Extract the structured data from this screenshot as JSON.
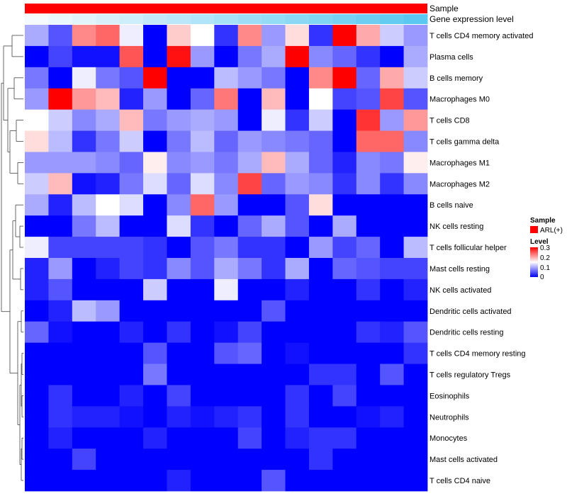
{
  "chart_data": {
    "type": "heatmap",
    "title": "",
    "annotation_tracks": {
      "sample": {
        "label": "Sample",
        "color": "#ff0000"
      },
      "expression": {
        "label": "Gene expression level",
        "low_color": "#f4fafe",
        "high_color": "#5ac8f0"
      }
    },
    "rows": [
      "T cells CD4 memory activated",
      "Plasma cells",
      "B cells memory",
      "Macrophages M0",
      "T cells CD8",
      "T cells gamma delta",
      "Macrophages M1",
      "Macrophages M2",
      "B cells naive",
      "NK cells resting",
      "T cells follicular helper",
      "Mast cells resting",
      "NK cells activated",
      "Dendritic cells activated",
      "Dendritic cells resting",
      "T cells CD4 memory resting",
      "T cells regulatory  Tregs",
      "Eosinophils",
      "Neutrophils",
      "Monocytes",
      "Mast cells activated",
      "T cells CD4 naive"
    ],
    "values": [
      [
        0.1,
        0.05,
        0.22,
        0.24,
        0.14,
        0.0,
        0.18,
        0.15,
        0.03,
        0.22,
        0.09,
        0.17,
        0.03,
        0.3,
        0.2,
        0.12,
        0.09
      ],
      [
        0.0,
        0.04,
        0.01,
        0.01,
        0.25,
        0.0,
        0.29,
        0.09,
        0.0,
        0.07,
        0.1,
        0.3,
        0.08,
        0.06,
        0.03,
        0.0,
        0.1
      ],
      [
        0.07,
        0.0,
        0.14,
        0.07,
        0.05,
        0.3,
        0.0,
        0.0,
        0.11,
        0.09,
        0.07,
        0.0,
        0.22,
        0.3,
        0.06,
        0.2,
        0.12
      ],
      [
        0.09,
        0.3,
        0.21,
        0.19,
        0.02,
        0.09,
        0.0,
        0.06,
        0.23,
        0.0,
        0.19,
        0.0,
        0.15,
        0.04,
        0.05,
        0.26,
        0.05
      ],
      [
        0.15,
        0.12,
        0.08,
        0.1,
        0.19,
        0.07,
        0.09,
        0.1,
        0.09,
        0.0,
        0.14,
        0.03,
        0.12,
        0.0,
        0.27,
        0.09,
        0.21
      ],
      [
        0.17,
        0.11,
        0.03,
        0.07,
        0.12,
        0.0,
        0.07,
        0.11,
        0.06,
        0.09,
        0.08,
        0.07,
        0.06,
        0.0,
        0.24,
        0.24,
        0.08
      ],
      [
        0.09,
        0.09,
        0.09,
        0.08,
        0.06,
        0.16,
        0.08,
        0.09,
        0.07,
        0.1,
        0.19,
        0.1,
        0.06,
        0.02,
        0.08,
        0.07,
        0.16
      ],
      [
        0.12,
        0.19,
        0.01,
        0.02,
        0.07,
        0.13,
        0.06,
        0.13,
        0.08,
        0.26,
        0.06,
        0.09,
        0.08,
        0.03,
        0.08,
        0.03,
        0.08
      ],
      [
        0.1,
        0.02,
        0.11,
        0.15,
        0.13,
        0.0,
        0.08,
        0.24,
        0.09,
        0.0,
        0.0,
        0.05,
        0.17,
        0.0,
        0.0,
        0.0,
        0.0
      ],
      [
        0.0,
        0.0,
        0.07,
        0.11,
        0.0,
        0.0,
        0.13,
        0.03,
        0.0,
        0.06,
        0.1,
        0.05,
        0.0,
        0.1,
        0.0,
        0.0,
        0.0
      ],
      [
        0.14,
        0.04,
        0.04,
        0.04,
        0.04,
        0.03,
        0.0,
        0.05,
        0.07,
        0.03,
        0.03,
        0.0,
        0.09,
        0.04,
        0.06,
        0.0,
        0.11
      ],
      [
        0.02,
        0.09,
        0.0,
        0.02,
        0.04,
        0.03,
        0.08,
        0.05,
        0.1,
        0.07,
        0.03,
        0.1,
        0.0,
        0.06,
        0.05,
        0.04,
        0.04
      ],
      [
        0.02,
        0.05,
        0.0,
        0.0,
        0.0,
        0.12,
        0.0,
        0.0,
        0.14,
        0.0,
        0.0,
        0.02,
        0.0,
        0.0,
        0.03,
        0.0,
        0.02
      ],
      [
        0.0,
        0.02,
        0.11,
        0.09,
        0.0,
        0.0,
        0.0,
        0.0,
        0.0,
        0.0,
        0.05,
        0.0,
        0.0,
        0.0,
        0.0,
        0.0,
        0.0
      ],
      [
        0.06,
        0.01,
        0.0,
        0.0,
        0.02,
        0.0,
        0.03,
        0.0,
        0.01,
        0.04,
        0.0,
        0.0,
        0.0,
        0.0,
        0.03,
        0.02,
        0.05
      ],
      [
        0.0,
        0.0,
        0.0,
        0.0,
        0.0,
        0.05,
        0.0,
        0.0,
        0.05,
        0.06,
        0.0,
        0.01,
        0.0,
        0.0,
        0.0,
        0.0,
        0.03
      ],
      [
        0.0,
        0.0,
        0.0,
        0.0,
        0.0,
        0.07,
        0.0,
        0.0,
        0.0,
        0.0,
        0.0,
        0.0,
        0.03,
        0.03,
        0.0,
        0.05,
        0.0
      ],
      [
        0.0,
        0.03,
        0.0,
        0.0,
        0.02,
        0.0,
        0.04,
        0.0,
        0.0,
        0.0,
        0.0,
        0.03,
        0.0,
        0.04,
        0.0,
        0.0,
        0.0
      ],
      [
        0.0,
        0.03,
        0.02,
        0.02,
        0.01,
        0.0,
        0.02,
        0.01,
        0.02,
        0.03,
        0.0,
        0.03,
        0.0,
        0.0,
        0.01,
        0.02,
        0.0
      ],
      [
        0.0,
        0.02,
        0.0,
        0.0,
        0.0,
        0.02,
        0.0,
        0.0,
        0.0,
        0.04,
        0.0,
        0.02,
        0.03,
        0.03,
        0.0,
        0.0,
        0.0
      ],
      [
        0.0,
        0.0,
        0.04,
        0.0,
        0.0,
        0.0,
        0.0,
        0.0,
        0.0,
        0.0,
        0.0,
        0.0,
        0.03,
        0.0,
        0.0,
        0.0,
        0.0
      ],
      [
        0.0,
        0.0,
        0.0,
        0.0,
        0.0,
        0.0,
        0.02,
        0.0,
        0.0,
        0.0,
        0.05,
        0.0,
        0.0,
        0.0,
        0.0,
        0.0,
        0.0
      ]
    ],
    "color_scale": {
      "min": 0,
      "max": 0.3,
      "low": "#0000ff",
      "mid": "#ffffff",
      "high": "#ff0000",
      "mid_value": 0.15
    },
    "legend": {
      "sample_title": "Sample",
      "sample_item": "ARL(+)",
      "level_title": "Level",
      "level_ticks": [
        "0.3",
        "0.2",
        "0.1",
        "0"
      ]
    }
  }
}
